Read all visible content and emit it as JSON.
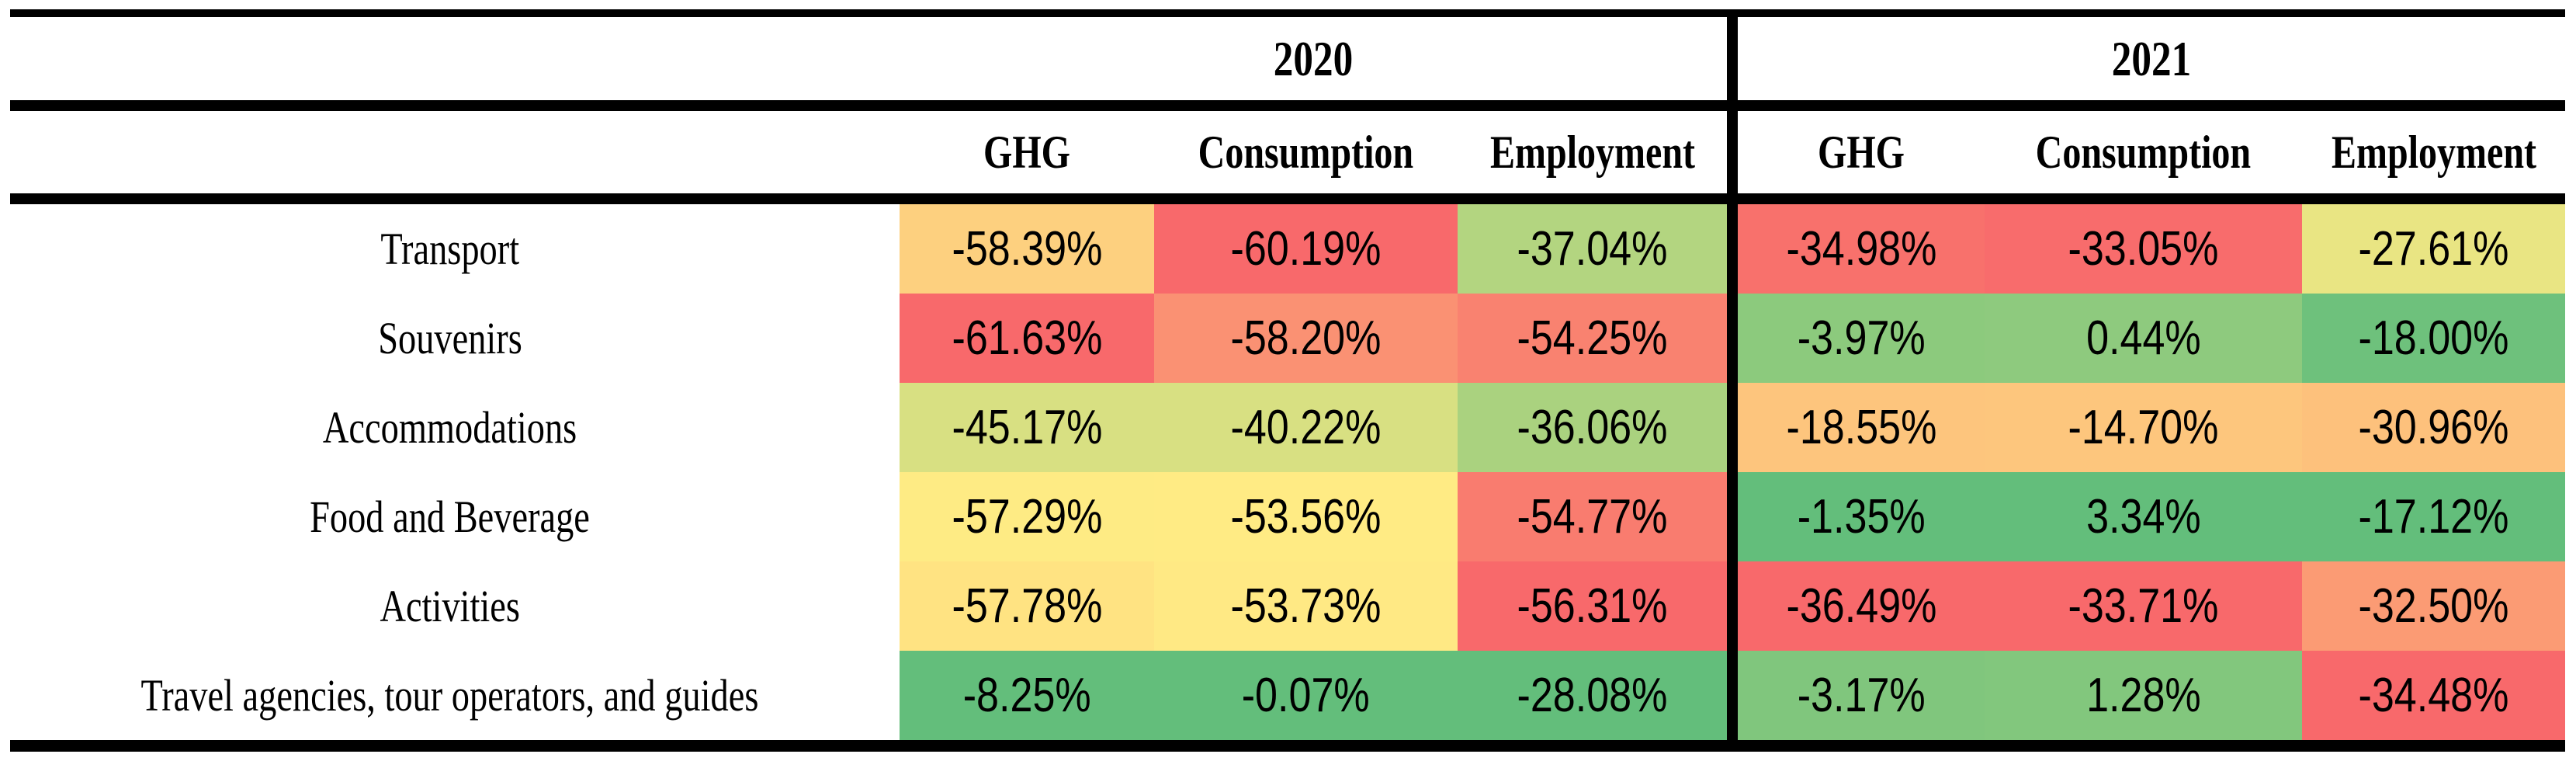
{
  "table": {
    "years": [
      {
        "label": "2020"
      },
      {
        "label": "2021"
      }
    ],
    "columns": [
      "GHG",
      "Consumption",
      "Employment"
    ],
    "rows": [
      {
        "label": "Transport",
        "y2020": [
          {
            "value": "-58.39%",
            "color": "#FDD07F"
          },
          {
            "value": "-60.19%",
            "color": "#F8696B"
          },
          {
            "value": "-37.04%",
            "color": "#B3D580"
          }
        ],
        "y2021": [
          {
            "value": "-34.98%",
            "color": "#F8716C"
          },
          {
            "value": "-33.05%",
            "color": "#F86C6C"
          },
          {
            "value": "-27.61%",
            "color": "#E9E583"
          }
        ]
      },
      {
        "label": "Souvenirs",
        "y2020": [
          {
            "value": "-61.63%",
            "color": "#F8696B"
          },
          {
            "value": "-58.20%",
            "color": "#FA9173"
          },
          {
            "value": "-54.25%",
            "color": "#F98270"
          }
        ],
        "y2021": [
          {
            "value": "-3.97%",
            "color": "#8CCA7D"
          },
          {
            "value": "0.44%",
            "color": "#8ECA7E"
          },
          {
            "value": "-18.00%",
            "color": "#6EC17C"
          }
        ]
      },
      {
        "label": "Accommodations",
        "y2020": [
          {
            "value": "-45.17%",
            "color": "#D8E082"
          },
          {
            "value": "-40.22%",
            "color": "#D8E082"
          },
          {
            "value": "-36.06%",
            "color": "#AAD27F"
          }
        ],
        "y2021": [
          {
            "value": "-18.55%",
            "color": "#FDC57D"
          },
          {
            "value": "-14.70%",
            "color": "#FDC67D"
          },
          {
            "value": "-30.96%",
            "color": "#FDC17C"
          }
        ]
      },
      {
        "label": "Food and Beverage",
        "y2020": [
          {
            "value": "-57.29%",
            "color": "#FEEB84"
          },
          {
            "value": "-53.56%",
            "color": "#FFEB84"
          },
          {
            "value": "-54.77%",
            "color": "#F97C6F"
          }
        ],
        "y2021": [
          {
            "value": "-1.35%",
            "color": "#63BE7B"
          },
          {
            "value": "3.34%",
            "color": "#63BE7B"
          },
          {
            "value": "-17.12%",
            "color": "#63BE7B"
          }
        ]
      },
      {
        "label": "Activities",
        "y2020": [
          {
            "value": "-57.78%",
            "color": "#FFE382"
          },
          {
            "value": "-53.73%",
            "color": "#FFE984"
          },
          {
            "value": "-56.31%",
            "color": "#F8696B"
          }
        ],
        "y2021": [
          {
            "value": "-36.49%",
            "color": "#F8696B"
          },
          {
            "value": "-33.71%",
            "color": "#F8696B"
          },
          {
            "value": "-32.50%",
            "color": "#FB9B74"
          }
        ]
      },
      {
        "label": "Travel agencies, tour operators, and guides",
        "y2020": [
          {
            "value": "-8.25%",
            "color": "#63BE7B"
          },
          {
            "value": "-0.07%",
            "color": "#63BE7B"
          },
          {
            "value": "-28.08%",
            "color": "#63BE7B"
          }
        ],
        "y2021": [
          {
            "value": "-3.17%",
            "color": "#80C67D"
          },
          {
            "value": "1.28%",
            "color": "#82C77D"
          },
          {
            "value": "-34.48%",
            "color": "#F8696B"
          }
        ]
      }
    ],
    "border_color": "#000000",
    "background_color": "#ffffff"
  },
  "chart_data": {
    "type": "heatmap",
    "row_categories": [
      "Transport",
      "Souvenirs",
      "Accommodations",
      "Food and Beverage",
      "Activities",
      "Travel agencies, tour operators, and guides"
    ],
    "column_groups": [
      "2020",
      "2021"
    ],
    "columns": [
      "GHG",
      "Consumption",
      "Employment"
    ],
    "values_2020": [
      [
        -58.39,
        -60.19,
        -37.04
      ],
      [
        -61.63,
        -58.2,
        -54.25
      ],
      [
        -45.17,
        -40.22,
        -36.06
      ],
      [
        -57.29,
        -53.56,
        -54.77
      ],
      [
        -57.78,
        -53.73,
        -56.31
      ],
      [
        -8.25,
        -0.07,
        -28.08
      ]
    ],
    "values_2021": [
      [
        -34.98,
        -33.05,
        -27.61
      ],
      [
        -3.97,
        0.44,
        -18.0
      ],
      [
        -18.55,
        -14.7,
        -30.96
      ],
      [
        -1.35,
        3.34,
        -17.12
      ],
      [
        -36.49,
        -33.71,
        -32.5
      ],
      [
        -3.17,
        1.28,
        -34.48
      ]
    ],
    "unit": "%",
    "color_scale": {
      "min": "#F8696B",
      "mid": "#FFEB84",
      "max": "#63BE7B"
    },
    "legend": "none",
    "grid": "off"
  }
}
